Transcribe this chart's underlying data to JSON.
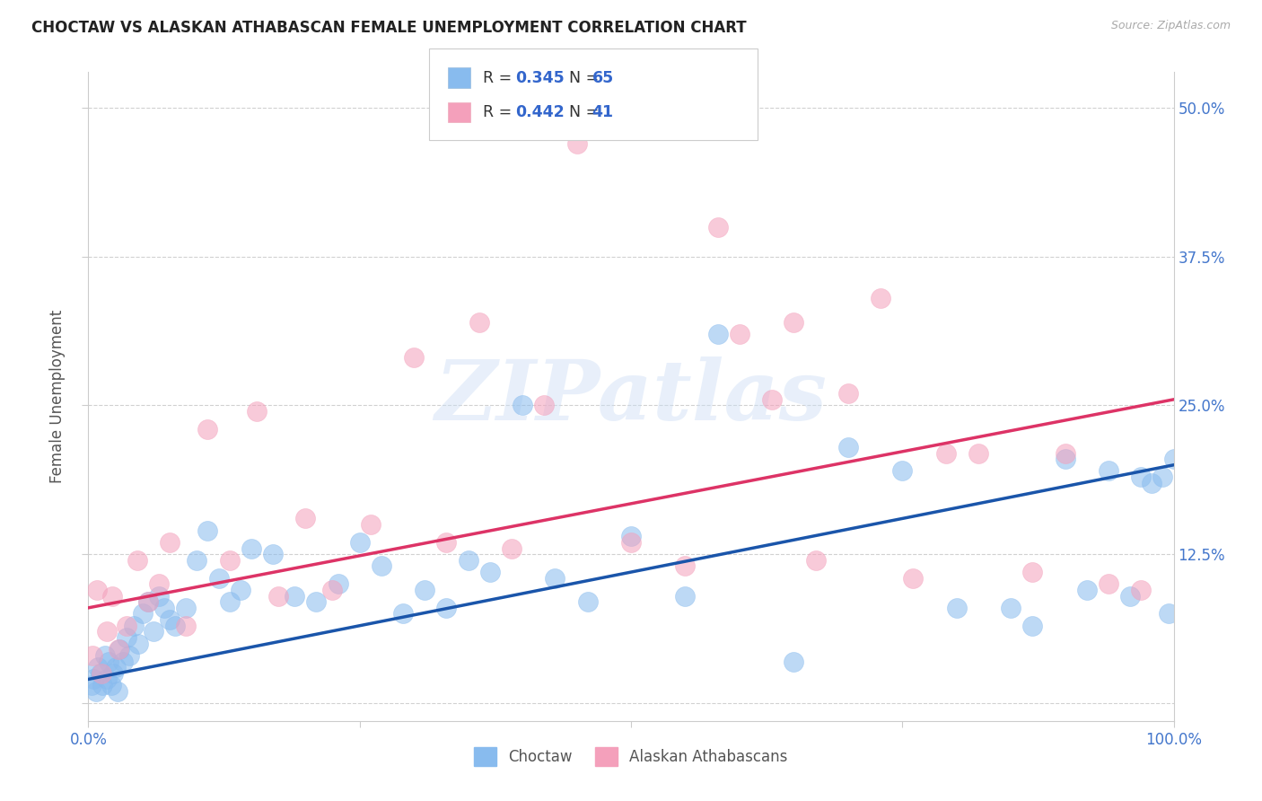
{
  "title": "CHOCTAW VS ALASKAN ATHABASCAN FEMALE UNEMPLOYMENT CORRELATION CHART",
  "source": "Source: ZipAtlas.com",
  "ylabel": "Female Unemployment",
  "xlim": [
    0,
    100
  ],
  "ylim": [
    -1.5,
    53
  ],
  "x_ticks": [
    0,
    25,
    50,
    75,
    100
  ],
  "x_tick_labels": [
    "0.0%",
    "",
    "",
    "",
    "100.0%"
  ],
  "y_ticks": [
    0,
    12.5,
    25.0,
    37.5,
    50.0
  ],
  "y_tick_labels_left": [
    "",
    "",
    "",
    "",
    ""
  ],
  "y_tick_labels_right": [
    "",
    "12.5%",
    "25.0%",
    "37.5%",
    "50.0%"
  ],
  "choctaw_color": "#88BBEE",
  "athabascan_color": "#F4A0BB",
  "choctaw_line_color": "#1A55AA",
  "athabascan_line_color": "#DD3366",
  "R_choctaw": "0.345",
  "N_choctaw": "65",
  "R_athabascan": "0.442",
  "N_athabascan": "41",
  "watermark": "ZIPatlas",
  "bg_color": "#ffffff",
  "grid_color": "#cccccc",
  "tick_color": "#4477CC",
  "choctaw_x": [
    0.3,
    0.5,
    0.7,
    0.9,
    1.1,
    1.3,
    1.5,
    1.7,
    1.9,
    2.1,
    2.3,
    2.5,
    2.7,
    2.9,
    3.2,
    3.5,
    3.8,
    4.2,
    4.6,
    5.0,
    5.5,
    6.0,
    6.5,
    7.0,
    7.5,
    8.0,
    9.0,
    10.0,
    11.0,
    12.0,
    13.0,
    14.0,
    15.0,
    17.0,
    19.0,
    21.0,
    23.0,
    25.0,
    27.0,
    29.0,
    31.0,
    33.0,
    35.0,
    37.0,
    40.0,
    43.0,
    46.0,
    50.0,
    55.0,
    58.0,
    65.0,
    70.0,
    75.0,
    80.0,
    85.0,
    87.0,
    90.0,
    92.0,
    94.0,
    96.0,
    97.0,
    98.0,
    99.0,
    99.5,
    100.0
  ],
  "choctaw_y": [
    1.5,
    2.0,
    1.0,
    3.0,
    2.5,
    1.5,
    4.0,
    2.0,
    3.5,
    1.5,
    2.5,
    3.0,
    1.0,
    4.5,
    3.5,
    5.5,
    4.0,
    6.5,
    5.0,
    7.5,
    8.5,
    6.0,
    9.0,
    8.0,
    7.0,
    6.5,
    8.0,
    12.0,
    14.5,
    10.5,
    8.5,
    9.5,
    13.0,
    12.5,
    9.0,
    8.5,
    10.0,
    13.5,
    11.5,
    7.5,
    9.5,
    8.0,
    12.0,
    11.0,
    25.0,
    10.5,
    8.5,
    14.0,
    9.0,
    31.0,
    3.5,
    21.5,
    19.5,
    8.0,
    8.0,
    6.5,
    20.5,
    9.5,
    19.5,
    9.0,
    19.0,
    18.5,
    19.0,
    7.5,
    20.5
  ],
  "athabascan_x": [
    0.4,
    0.8,
    1.2,
    1.7,
    2.2,
    2.8,
    3.5,
    4.5,
    5.5,
    6.5,
    7.5,
    9.0,
    11.0,
    13.0,
    15.5,
    17.5,
    20.0,
    22.5,
    26.0,
    30.0,
    33.0,
    36.0,
    39.0,
    42.0,
    45.0,
    50.0,
    55.0,
    58.0,
    60.0,
    63.0,
    65.0,
    67.0,
    70.0,
    73.0,
    76.0,
    79.0,
    82.0,
    87.0,
    90.0,
    94.0,
    97.0
  ],
  "athabascan_y": [
    4.0,
    9.5,
    2.5,
    6.0,
    9.0,
    4.5,
    6.5,
    12.0,
    8.5,
    10.0,
    13.5,
    6.5,
    23.0,
    12.0,
    24.5,
    9.0,
    15.5,
    9.5,
    15.0,
    29.0,
    13.5,
    32.0,
    13.0,
    25.0,
    47.0,
    13.5,
    11.5,
    40.0,
    31.0,
    25.5,
    32.0,
    12.0,
    26.0,
    34.0,
    10.5,
    21.0,
    21.0,
    11.0,
    21.0,
    10.0,
    9.5
  ],
  "blue_line_x0": 0,
  "blue_line_y0": 2.0,
  "blue_line_x1": 100,
  "blue_line_y1": 20.0,
  "pink_line_x0": 0,
  "pink_line_y0": 8.0,
  "pink_line_x1": 100,
  "pink_line_y1": 25.5
}
